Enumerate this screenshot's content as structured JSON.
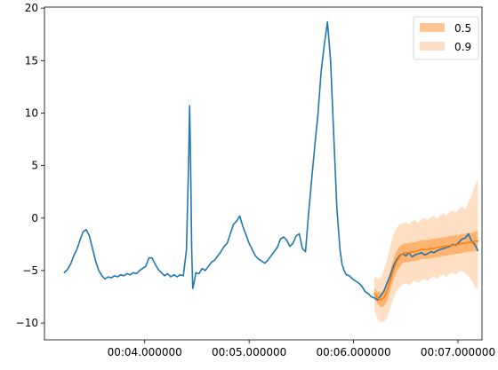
{
  "chart_data": {
    "type": "line",
    "title": "",
    "xlabel": "",
    "ylabel": "",
    "x_ticks": [
      {
        "value": 4.0,
        "label": "00:04.000000"
      },
      {
        "value": 5.0,
        "label": "00:05.000000"
      },
      {
        "value": 6.0,
        "label": "00:06.000000"
      },
      {
        "value": 7.0,
        "label": "00:07.000000"
      }
    ],
    "y_ticks": [
      -10,
      -5,
      0,
      5,
      10,
      15,
      20
    ],
    "xlim": [
      3.04,
      7.23
    ],
    "ylim": [
      -11.6,
      20.1
    ],
    "grid": false,
    "legend": {
      "placement": "upper right",
      "entries": [
        {
          "label": "0.5",
          "color": "#ff7f0e",
          "alpha": 0.5
        },
        {
          "label": "0.9",
          "color": "#ff7f0e",
          "alpha": 0.25
        }
      ]
    },
    "series": [
      {
        "color": "#1f77b4",
        "x": [
          3.23,
          3.26,
          3.29,
          3.32,
          3.35,
          3.38,
          3.41,
          3.44,
          3.47,
          3.5,
          3.53,
          3.56,
          3.59,
          3.62,
          3.65,
          3.68,
          3.71,
          3.74,
          3.77,
          3.8,
          3.83,
          3.86,
          3.89,
          3.92,
          3.95,
          3.98,
          4.01,
          4.04,
          4.07,
          4.1,
          4.13,
          4.16,
          4.19,
          4.22,
          4.25,
          4.28,
          4.31,
          4.34,
          4.37,
          4.4,
          4.42,
          4.43,
          4.44,
          4.45,
          4.46,
          4.47,
          4.49,
          4.52,
          4.55,
          4.58,
          4.61,
          4.64,
          4.67,
          4.7,
          4.73,
          4.76,
          4.79,
          4.82,
          4.85,
          4.88,
          4.91,
          4.94,
          4.97,
          5.0,
          5.03,
          5.06,
          5.09,
          5.12,
          5.15,
          5.18,
          5.21,
          5.24,
          5.27,
          5.3,
          5.33,
          5.36,
          5.39,
          5.42,
          5.45,
          5.48,
          5.51,
          5.54,
          5.57,
          5.6,
          5.63,
          5.66,
          5.69,
          5.72,
          5.75,
          5.78,
          5.81,
          5.84,
          5.87,
          5.89,
          5.91,
          5.93,
          5.96,
          5.99,
          6.02,
          6.05,
          6.08,
          6.11,
          6.14,
          6.17,
          6.2,
          6.23,
          6.26,
          6.29,
          6.32,
          6.35,
          6.38,
          6.41,
          6.44,
          6.47,
          6.5,
          6.53,
          6.56,
          6.59,
          6.62,
          6.65,
          6.68,
          6.71,
          6.74,
          6.77,
          6.8,
          6.83,
          6.86,
          6.89,
          6.92,
          6.95,
          6.98,
          7.01,
          7.04,
          7.07,
          7.1,
          7.13,
          7.16,
          7.19
        ],
        "y": [
          -5.2,
          -4.9,
          -4.4,
          -3.6,
          -3.0,
          -2.1,
          -1.3,
          -1.1,
          -1.7,
          -2.9,
          -4.1,
          -5.0,
          -5.5,
          -5.8,
          -5.6,
          -5.7,
          -5.5,
          -5.6,
          -5.4,
          -5.5,
          -5.3,
          -5.4,
          -5.2,
          -5.3,
          -5.0,
          -4.8,
          -4.6,
          -3.8,
          -3.8,
          -4.4,
          -4.9,
          -5.2,
          -5.5,
          -5.3,
          -5.6,
          -5.4,
          -5.6,
          -5.4,
          -5.5,
          -3.0,
          5.0,
          10.7,
          5.0,
          -3.0,
          -6.7,
          -6.3,
          -5.2,
          -5.3,
          -4.8,
          -5.0,
          -4.6,
          -4.2,
          -4.0,
          -3.6,
          -3.2,
          -2.7,
          -2.4,
          -1.5,
          -0.6,
          -0.3,
          0.2,
          -0.8,
          -1.6,
          -2.4,
          -3.0,
          -3.6,
          -3.9,
          -4.1,
          -4.3,
          -4.0,
          -3.6,
          -3.2,
          -2.8,
          -2.0,
          -1.8,
          -2.1,
          -2.7,
          -2.4,
          -1.7,
          -1.5,
          -2.9,
          -3.2,
          0.5,
          3.8,
          7.0,
          10.0,
          14.0,
          16.5,
          18.7,
          15.0,
          8.0,
          1.0,
          -3.0,
          -4.4,
          -5.0,
          -5.4,
          -5.5,
          -5.8,
          -6.0,
          -6.2,
          -6.5,
          -7.0,
          -7.2,
          -7.5,
          -7.6,
          -7.8,
          -7.4,
          -7.0,
          -6.2,
          -5.5,
          -4.6,
          -4.0,
          -3.6,
          -3.4,
          -3.6,
          -3.3,
          -3.7,
          -3.5,
          -3.4,
          -3.3,
          -3.5,
          -3.4,
          -3.2,
          -3.3,
          -3.1,
          -3.0,
          -2.9,
          -2.8,
          -2.7,
          -2.5,
          -2.6,
          -2.3,
          -2.0,
          -1.9,
          -1.5,
          -2.2,
          -2.5,
          -3.1
        ]
      },
      {
        "color": "#ff7f0e",
        "x": [
          6.2,
          6.23,
          6.26,
          6.29,
          6.32,
          6.35,
          6.38,
          6.41,
          6.44,
          6.47,
          6.5,
          6.53,
          6.56,
          6.59,
          6.62,
          6.65,
          6.68,
          6.71,
          6.74,
          6.77,
          6.8,
          6.83,
          6.86,
          6.89,
          6.92,
          6.95,
          6.98,
          7.01,
          7.04,
          7.07,
          7.1,
          7.13,
          7.16,
          7.19
        ],
        "y": [
          -7.2,
          -7.6,
          -7.8,
          -7.6,
          -7.0,
          -6.0,
          -5.0,
          -4.2,
          -3.7,
          -3.4,
          -3.3,
          -3.3,
          -3.2,
          -3.2,
          -3.1,
          -3.0,
          -3.0,
          -3.0,
          -2.9,
          -2.9,
          -2.8,
          -2.8,
          -2.7,
          -2.7,
          -2.6,
          -2.6,
          -2.5,
          -2.5,
          -2.4,
          -2.4,
          -2.3,
          -2.3,
          -2.2,
          -2.2
        ]
      }
    ],
    "bands": [
      {
        "label": "0.5",
        "x": [
          6.2,
          6.23,
          6.26,
          6.29,
          6.32,
          6.35,
          6.38,
          6.41,
          6.44,
          6.47,
          6.5,
          6.53,
          6.56,
          6.59,
          6.62,
          6.65,
          6.68,
          6.71,
          6.74,
          6.77,
          6.8,
          6.83,
          6.86,
          6.89,
          6.92,
          6.95,
          6.98,
          7.01,
          7.04,
          7.07,
          7.1,
          7.13,
          7.16,
          7.19
        ],
        "upper": [
          -6.7,
          -7.0,
          -7.1,
          -6.8,
          -6.1,
          -5.1,
          -4.0,
          -3.2,
          -2.7,
          -2.5,
          -2.4,
          -2.4,
          -2.3,
          -2.3,
          -2.2,
          -2.1,
          -2.1,
          -2.1,
          -2.0,
          -2.0,
          -1.9,
          -1.9,
          -1.8,
          -1.8,
          -1.7,
          -1.7,
          -1.6,
          -1.6,
          -1.5,
          -1.5,
          -1.4,
          -1.4,
          -1.3,
          -1.2
        ],
        "lower": [
          -7.7,
          -8.2,
          -8.5,
          -8.4,
          -7.9,
          -6.9,
          -6.0,
          -5.2,
          -4.7,
          -4.3,
          -4.2,
          -4.2,
          -4.1,
          -4.1,
          -4.0,
          -3.9,
          -3.9,
          -3.9,
          -3.8,
          -3.8,
          -3.7,
          -3.7,
          -3.6,
          -3.6,
          -3.5,
          -3.5,
          -3.4,
          -3.4,
          -3.3,
          -3.3,
          -3.2,
          -3.2,
          -3.1,
          -3.2
        ]
      },
      {
        "label": "0.9",
        "x": [
          6.2,
          6.23,
          6.26,
          6.29,
          6.32,
          6.35,
          6.38,
          6.41,
          6.44,
          6.47,
          6.5,
          6.53,
          6.56,
          6.59,
          6.62,
          6.65,
          6.68,
          6.71,
          6.74,
          6.77,
          6.8,
          6.83,
          6.86,
          6.89,
          6.92,
          6.95,
          6.98,
          7.01,
          7.04,
          7.07,
          7.1,
          7.13,
          7.16,
          7.19
        ],
        "upper": [
          -5.5,
          -5.8,
          -5.7,
          -5.0,
          -4.0,
          -2.7,
          -1.6,
          -1.0,
          -0.6,
          -0.5,
          -0.4,
          -0.6,
          -0.3,
          -0.2,
          -0.5,
          -0.1,
          0.0,
          -0.2,
          0.1,
          0.2,
          -0.1,
          0.3,
          0.4,
          0.2,
          0.6,
          0.7,
          0.5,
          0.9,
          1.1,
          0.8,
          1.5,
          2.2,
          3.0,
          3.7
        ],
        "lower": [
          -8.8,
          -9.6,
          -9.9,
          -9.9,
          -9.5,
          -8.6,
          -7.8,
          -7.0,
          -6.6,
          -6.3,
          -6.2,
          -6.4,
          -6.1,
          -6.0,
          -6.2,
          -5.9,
          -5.8,
          -6.0,
          -5.7,
          -5.6,
          -5.8,
          -5.5,
          -5.4,
          -5.6,
          -5.3,
          -5.2,
          -5.4,
          -5.1,
          -5.0,
          -5.3,
          -5.5,
          -6.0,
          -6.5,
          -6.8
        ]
      }
    ]
  }
}
